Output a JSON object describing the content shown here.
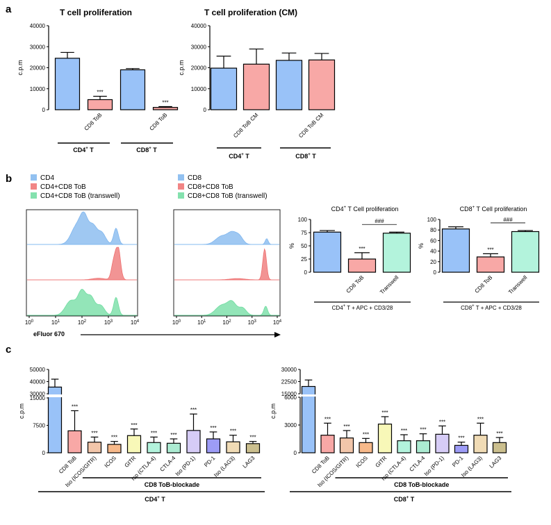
{
  "panels": {
    "a": "a",
    "b": "b",
    "c": "c"
  },
  "chart_data": [
    {
      "id": "a1",
      "type": "bar",
      "title": "T cell proliferation",
      "ylabel": "c.p.m",
      "ylim": [
        0,
        40000
      ],
      "yticks": [
        0,
        10000,
        20000,
        30000,
        40000
      ],
      "categories": [
        "",
        "CD8 ToB",
        "",
        "CD8 ToB"
      ],
      "values": [
        24500,
        4800,
        19000,
        1100
      ],
      "errors": [
        2800,
        1600,
        600,
        400
      ],
      "colors": [
        "#99c2f8",
        "#f8a8a6",
        "#99c2f8",
        "#f8a8a6"
      ],
      "annotations": [
        "",
        "***",
        "",
        "***"
      ],
      "groups": [
        {
          "label": "CD4",
          "sup": "+",
          "suffix": " T"
        },
        {
          "label": "CD8",
          "sup": "+",
          "suffix": " T"
        }
      ]
    },
    {
      "id": "a2",
      "type": "bar",
      "title": "T cell proliferation (CM)",
      "ylabel": "c.p.m",
      "ylim": [
        0,
        40000
      ],
      "yticks": [
        0,
        10000,
        20000,
        30000,
        40000
      ],
      "categories": [
        "",
        "CD8 ToB CM",
        "",
        "CD8 ToB CM"
      ],
      "values": [
        19800,
        21700,
        23500,
        23700
      ],
      "errors": [
        5700,
        7200,
        3500,
        3100
      ],
      "colors": [
        "#99c2f8",
        "#f8a8a6",
        "#99c2f8",
        "#f8a8a6"
      ],
      "annotations": [
        "",
        "",
        "",
        ""
      ],
      "groups": [
        {
          "label": "CD4",
          "sup": "+",
          "suffix": " T"
        },
        {
          "label": "CD8",
          "sup": "+",
          "suffix": " T"
        }
      ]
    },
    {
      "id": "b1",
      "type": "bar",
      "title": "CD4",
      "title_sup": "+",
      "title_suffix": " T Cell proliferation",
      "ylabel": "%",
      "ylim": [
        0,
        100
      ],
      "yticks": [
        0,
        25,
        50,
        75,
        100
      ],
      "categories": [
        "",
        "CD8 ToB",
        "Transwell"
      ],
      "values": [
        76,
        25,
        74
      ],
      "errors": [
        3,
        12,
        2
      ],
      "colors": [
        "#99c2f8",
        "#f8a8a6",
        "#b3f3dc"
      ],
      "annotations": [
        "",
        "***",
        ""
      ],
      "bracket_label": "###",
      "group": {
        "label": "CD4",
        "sup": "+",
        "suffix": " T + APC + CD3/28"
      }
    },
    {
      "id": "b2",
      "type": "bar",
      "title": "CD8",
      "title_sup": "+",
      "title_suffix": " T Cell proliferation",
      "ylabel": "%",
      "ylim": [
        0,
        100
      ],
      "yticks": [
        0,
        20,
        40,
        60,
        80,
        100
      ],
      "categories": [
        "",
        "CD8 ToB",
        "Transwell"
      ],
      "values": [
        82,
        29,
        77
      ],
      "errors": [
        4,
        6,
        2
      ],
      "colors": [
        "#99c2f8",
        "#f8a8a6",
        "#b3f3dc"
      ],
      "annotations": [
        "",
        "***",
        ""
      ],
      "bracket_label": "###",
      "group": {
        "label": "CD8",
        "sup": "+",
        "suffix": " T + APC + CD3/28"
      }
    },
    {
      "id": "c1",
      "type": "bar",
      "ylabel": "c.p.m",
      "broken_axis": true,
      "lower_ticks": [
        0,
        7500,
        15000
      ],
      "upper_ticks": [
        30000,
        40000,
        50000
      ],
      "categories": [
        "",
        "CD8 ToB",
        "Iso (ICOS/GITR)",
        "ICOS",
        "GITR",
        "Iso (CTLA-4)",
        "CTLA-4",
        "Iso (PD-1)",
        "PD-1",
        "Iso (LAG3)",
        "LAG3"
      ],
      "values": [
        35500,
        6000,
        2900,
        2300,
        4700,
        2800,
        2600,
        6100,
        3800,
        3000,
        2500
      ],
      "errors": [
        6500,
        5500,
        1400,
        800,
        1800,
        1500,
        1200,
        4500,
        1900,
        1800,
        600
      ],
      "colors": [
        "#99c2f8",
        "#f8a8a6",
        "#f2c6aa",
        "#f7b98a",
        "#f8f8b8",
        "#b3f3dc",
        "#acebd2",
        "#d6ccf6",
        "#9d9cf6",
        "#f0dbb5",
        "#cbbf8e"
      ],
      "annotations": [
        "",
        "***",
        "***",
        "***",
        "***",
        "***",
        "***",
        "***",
        "***",
        "***",
        "***"
      ],
      "blockade_label": "CD8 ToB-blockade",
      "group": {
        "label": "CD4",
        "sup": "+",
        "suffix": " T"
      }
    },
    {
      "id": "c2",
      "type": "bar",
      "ylabel": "c.p.m",
      "broken_axis": true,
      "lower_ticks": [
        0,
        3000,
        6000
      ],
      "upper_ticks": [
        15000,
        22500,
        30000
      ],
      "categories": [
        "",
        "CD8 ToB",
        "Iso (ICOS/GITR)",
        "ICOS",
        "GITR",
        "Iso (CTLA-4)",
        "CTLA-4",
        "Iso (PD-1)",
        "PD-1",
        "Iso (LAG3)",
        "LAG3"
      ],
      "values": [
        19500,
        1900,
        1600,
        1100,
        3100,
        1300,
        1300,
        2000,
        800,
        1900,
        1100
      ],
      "errors": [
        4000,
        1300,
        800,
        450,
        800,
        650,
        750,
        900,
        350,
        1300,
        550
      ],
      "colors": [
        "#99c2f8",
        "#f8a8a6",
        "#f2c6aa",
        "#f7b98a",
        "#f8f8b8",
        "#b3f3dc",
        "#acebd2",
        "#d6ccf6",
        "#9d9cf6",
        "#f0dbb5",
        "#cbbf8e"
      ],
      "annotations": [
        "",
        "***",
        "***",
        "***",
        "***",
        "***",
        "***",
        "***",
        "***",
        "***",
        "***"
      ],
      "blockade_label": "CD8 ToB-blockade",
      "group": {
        "label": "CD8",
        "sup": "+",
        "suffix": " T"
      }
    }
  ],
  "flow": {
    "xlabel": "eFluor 670",
    "ticks": [
      "10",
      "10",
      "10",
      "10",
      "10",
      "10"
    ],
    "tick_exps": [
      "0",
      "1",
      "2",
      "3",
      "4",
      ""
    ],
    "left": {
      "legend": [
        {
          "label": "CD4",
          "color": "#7fb6ee"
        },
        {
          "label": "CD4+CD8 ToB",
          "color": "#ee7070"
        },
        {
          "label": "CD4+CD8 ToB (transwell)",
          "color": "#6fdca0"
        }
      ]
    },
    "right": {
      "legend": [
        {
          "label": "CD8",
          "color": "#7fb6ee"
        },
        {
          "label": "CD8+CD8 ToB",
          "color": "#ee7070"
        },
        {
          "label": "CD8+CD8 ToB (transwell)",
          "color": "#6fdca0"
        }
      ]
    }
  }
}
